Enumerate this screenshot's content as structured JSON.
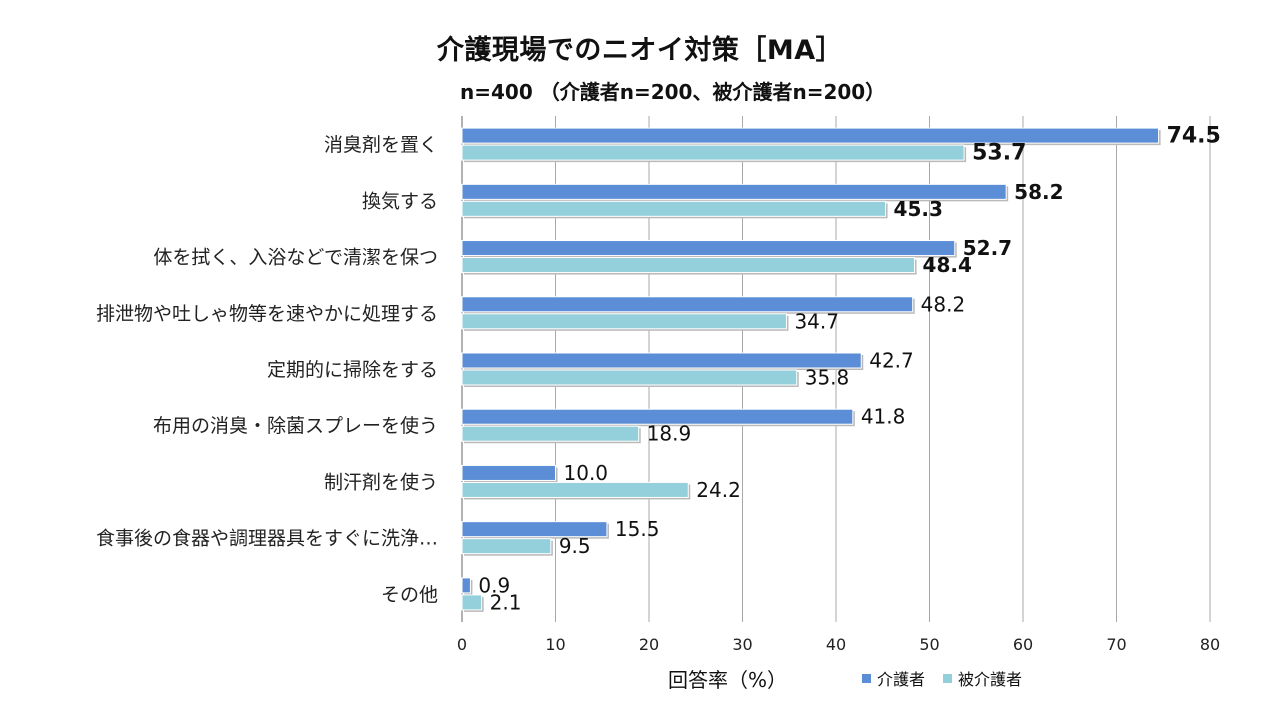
{
  "chart_data": {
    "type": "bar",
    "orientation": "horizontal",
    "title": "介護現場でのニオイ対策［MA］",
    "subtitle": "n=400 （介護者n=200、被介護者n=200）",
    "xlabel": "回答率（%）",
    "xlim": [
      0,
      80
    ],
    "xticks": [
      "0",
      "10",
      "20",
      "30",
      "40",
      "50",
      "60",
      "70",
      "80"
    ],
    "grid": true,
    "legend_position": "bottom",
    "categories": [
      "消臭剤を置く",
      "換気する",
      "体を拭く、入浴などで清潔を保つ",
      "排泄物や吐しゃ物等を速やかに処理する",
      "定期的に掃除をする",
      "布用の消臭・除菌スプレーを使う",
      "制汗剤を使う",
      "食事後の食器や調理器具をすぐに洗浄…",
      "その他"
    ],
    "series": [
      {
        "name": "介護者",
        "color": "#5b8ed6",
        "values": [
          74.5,
          58.2,
          52.7,
          48.2,
          42.7,
          41.8,
          10.0,
          15.5,
          0.9
        ],
        "labels": [
          "74.5",
          "58.2",
          "52.7",
          "48.2",
          "42.7",
          "41.8",
          "10.0",
          "15.5",
          "0.9"
        ],
        "bold": [
          true,
          true,
          true,
          false,
          false,
          false,
          false,
          false,
          false
        ]
      },
      {
        "name": "被介護者",
        "color": "#94d0db",
        "values": [
          53.7,
          45.3,
          48.4,
          34.7,
          35.8,
          18.9,
          24.2,
          9.5,
          2.1
        ],
        "labels": [
          "53.7",
          "45.3",
          "48.4",
          "34.7",
          "35.8",
          "18.9",
          "24.2",
          "9.5",
          "2.1"
        ],
        "bold": [
          true,
          true,
          true,
          false,
          false,
          false,
          false,
          false,
          false
        ]
      }
    ]
  }
}
